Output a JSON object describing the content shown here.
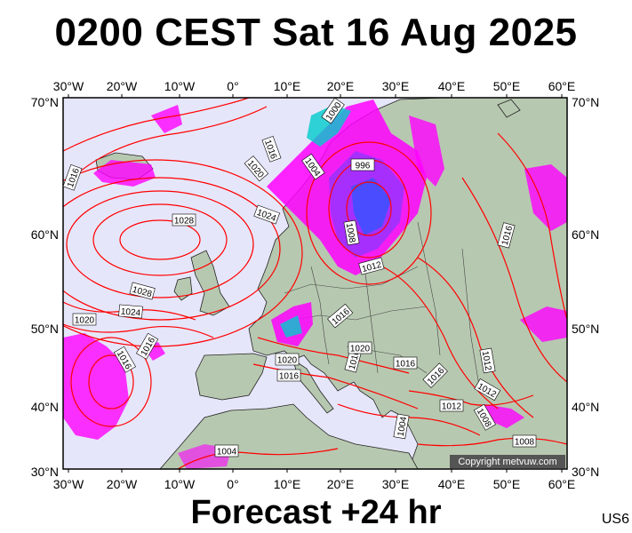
{
  "title": "0200 CEST Sat 16 Aug 2025",
  "footer": "Forecast +24 hr",
  "code": "US6",
  "copyright": "Copyright metvuw.com",
  "lon_ticks": [
    "30°W",
    "20°W",
    "10°W",
    "0°",
    "10°E",
    "20°E",
    "30°E",
    "40°E",
    "50°E",
    "60°E"
  ],
  "lat_ticks_left": [
    "70°N",
    "60°N",
    "50°N",
    "40°N",
    "30°N"
  ],
  "lat_ticks_right": [
    "70°N",
    "60°N",
    "50°N",
    "40°N",
    "30°N"
  ],
  "isobar_labels": [
    "1000",
    "1016",
    "1020",
    "1004",
    "996",
    "1016",
    "1024",
    "1028",
    "1008",
    "1012",
    "1028",
    "1024",
    "1020",
    "1016",
    "1016",
    "1016",
    "1020",
    "1016",
    "1016",
    "1016",
    "1016",
    "1012",
    "1012",
    "1004",
    "1012",
    "1008",
    "1016",
    "1008",
    "1004",
    "1020"
  ],
  "colors": {
    "sea": "#e6e6fa",
    "land": "#b7c8b0",
    "isobar": "#ff0000",
    "rain_light": "#ff00ff",
    "rain_medium": "#9933ff",
    "rain_heavy": "#3355ff",
    "rain_intense": "#00cccc"
  }
}
